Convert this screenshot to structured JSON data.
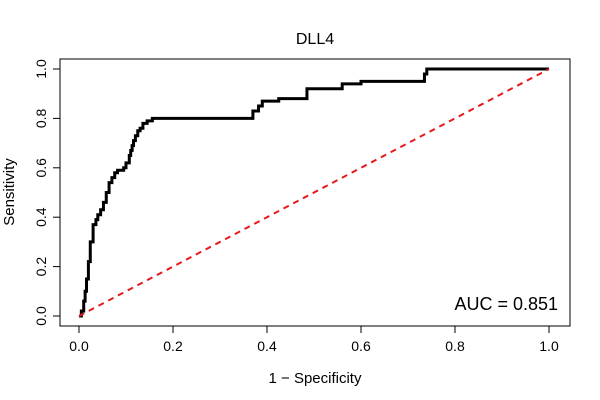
{
  "chart_data": {
    "type": "line",
    "title": "DLL4",
    "xlabel": "1 − Specificity",
    "ylabel": "Sensitivity",
    "xlim": [
      0,
      1
    ],
    "ylim": [
      0,
      1
    ],
    "xticks": [
      "0.0",
      "0.2",
      "0.4",
      "0.6",
      "0.8",
      "1.0"
    ],
    "yticks": [
      "0.0",
      "0.2",
      "0.4",
      "0.6",
      "0.8",
      "1.0"
    ],
    "grid": false,
    "annotation": "AUC = 0.851",
    "series": [
      {
        "style": "step",
        "color": "#000000",
        "x": [
          0.0,
          0.005,
          0.01,
          0.013,
          0.016,
          0.02,
          0.024,
          0.03,
          0.036,
          0.04,
          0.046,
          0.052,
          0.058,
          0.064,
          0.07,
          0.076,
          0.082,
          0.095,
          0.1,
          0.107,
          0.11,
          0.113,
          0.116,
          0.12,
          0.125,
          0.13,
          0.136,
          0.145,
          0.156,
          0.366,
          0.37,
          0.382,
          0.39,
          0.41,
          0.425,
          0.48,
          0.485,
          0.54,
          0.56,
          0.6,
          0.73,
          0.735,
          0.74,
          1.0
        ],
        "y": [
          0.0,
          0.02,
          0.06,
          0.1,
          0.15,
          0.22,
          0.3,
          0.37,
          0.39,
          0.41,
          0.43,
          0.46,
          0.5,
          0.54,
          0.56,
          0.58,
          0.59,
          0.6,
          0.62,
          0.65,
          0.67,
          0.69,
          0.71,
          0.73,
          0.75,
          0.76,
          0.78,
          0.79,
          0.8,
          0.8,
          0.83,
          0.85,
          0.87,
          0.87,
          0.88,
          0.88,
          0.92,
          0.92,
          0.94,
          0.95,
          0.95,
          0.98,
          1.0,
          1.0
        ]
      },
      {
        "style": "dashed",
        "color": "#e41a1c",
        "x": [
          0,
          1
        ],
        "y": [
          0,
          1
        ]
      }
    ]
  }
}
